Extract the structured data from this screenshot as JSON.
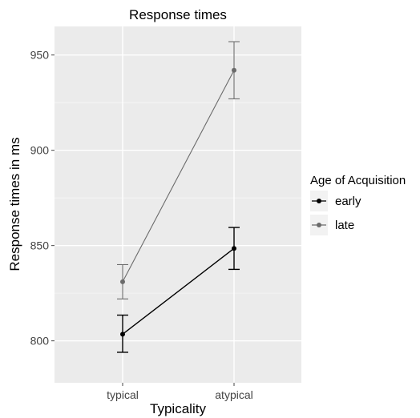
{
  "chart_data": {
    "type": "line",
    "title": "Response times",
    "xlabel": "Typicality",
    "ylabel": "Response times in ms",
    "categories": [
      "typical",
      "atypical"
    ],
    "ylim": [
      778,
      965
    ],
    "yticks": [
      800,
      850,
      900,
      950
    ],
    "grid": true,
    "legend": {
      "title": "Age of Acquisition",
      "position": "right"
    },
    "series": [
      {
        "name": "early",
        "color": "#000000",
        "values": [
          803.5,
          848.5
        ],
        "error_low": [
          794,
          837.5
        ],
        "error_high": [
          813.5,
          859.5
        ]
      },
      {
        "name": "late",
        "color": "#6b6b6b",
        "values": [
          831,
          942
        ],
        "error_low": [
          822,
          927
        ],
        "error_high": [
          840,
          957
        ]
      }
    ]
  }
}
